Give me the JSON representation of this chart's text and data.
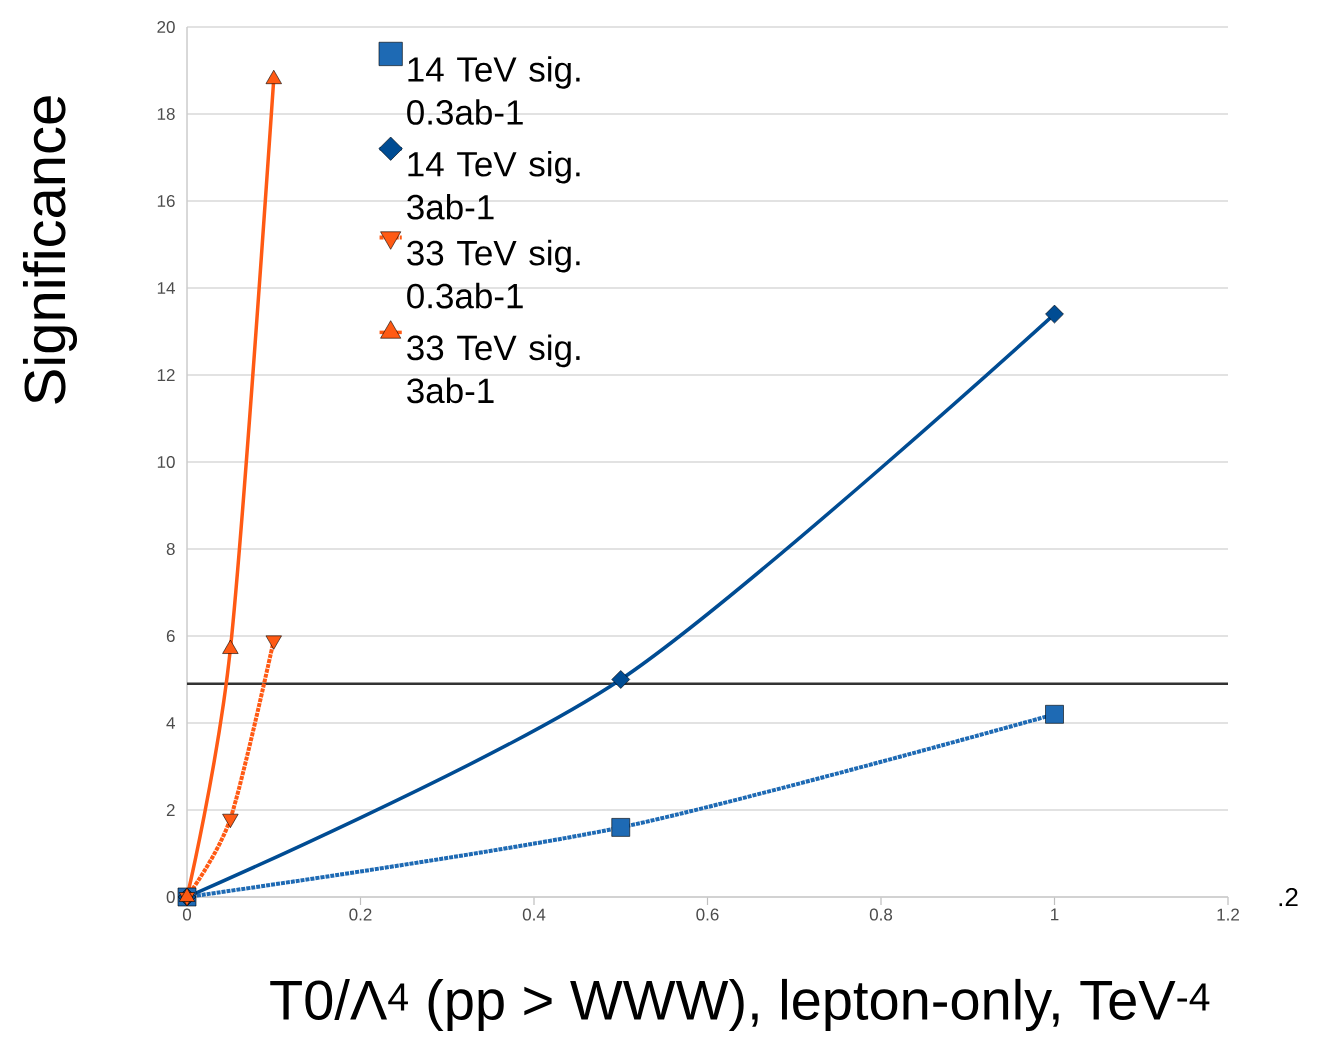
{
  "chart_data": {
    "type": "line",
    "ylabel": "Significance",
    "xlabel": "T0/Λ$^{4}$ (pp > WWW), lepton-only, TeV$^{-4}$",
    "xlim": [
      0,
      1.2
    ],
    "xticks": [
      0,
      0.2,
      0.4,
      0.6,
      0.8,
      1,
      1.2
    ],
    "ylim": [
      0,
      20
    ],
    "yticks": [
      0,
      2,
      4,
      6,
      8,
      10,
      12,
      14,
      16,
      18,
      20
    ],
    "grid": "y",
    "legend": "top left",
    "series": [
      {
        "name": "14 TeV sig. 0.3ab-1",
        "color": "#1e6ab4",
        "marker": "square",
        "line_style": "dotted",
        "x": [
          0,
          0.5,
          1
        ],
        "values": [
          0,
          1.6,
          4.2
        ]
      },
      {
        "name": "14 TeV sig. 3ab-1",
        "color": "#004c93",
        "marker": "diamond",
        "line_style": "solid",
        "x": [
          0,
          0.5,
          1
        ],
        "values": [
          0,
          5.0,
          13.4
        ]
      },
      {
        "name": "33 TeV sig. 0.3ab-1",
        "color": "#ff5a14",
        "marker": "triangle-down",
        "line_style": "dotted",
        "x": [
          0,
          0.05,
          0.1
        ],
        "values": [
          0,
          1.8,
          5.9
        ]
      },
      {
        "name": "33 TeV sig. 3ab-1",
        "color": "#ff5a14",
        "marker": "triangle",
        "line_style": "solid",
        "x": [
          0,
          0.05,
          0.1
        ],
        "values": [
          0,
          5.7,
          18.8
        ]
      }
    ],
    "ref_lines": [
      {
        "axis": "y",
        "value": 4.9,
        "color": "#333333"
      }
    ],
    "annotations": [
      ".2"
    ]
  }
}
